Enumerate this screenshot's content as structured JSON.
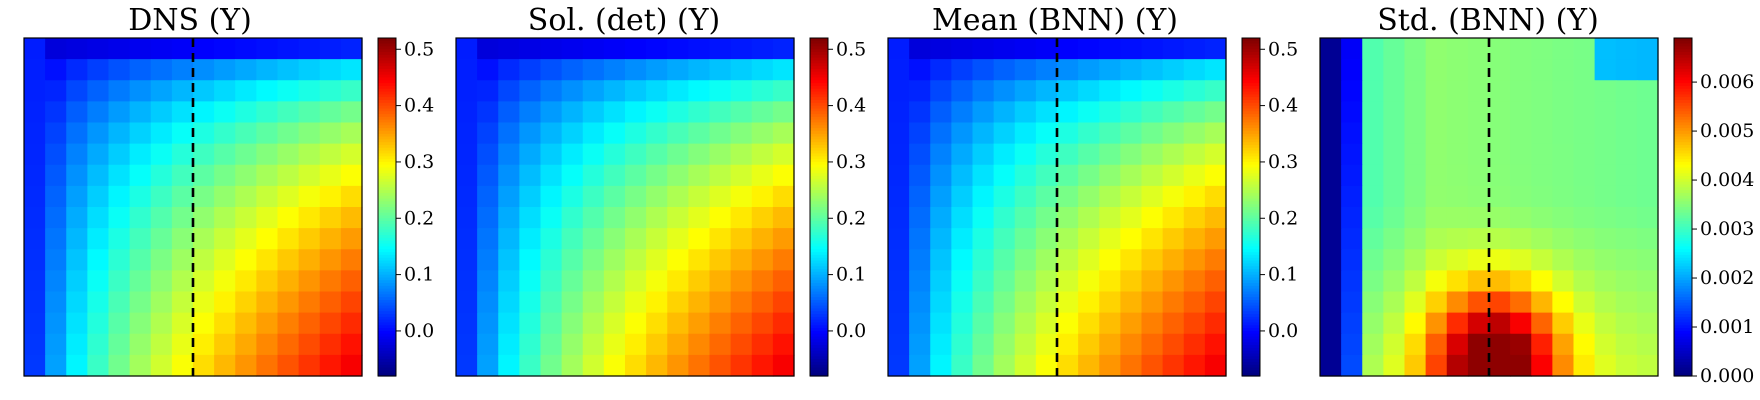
{
  "chart_data": [
    {
      "type": "heatmap",
      "title": "DNS (Y)",
      "colorbar": {
        "vmin": -0.08,
        "vmax": 0.52,
        "ticks": [
          0.0,
          0.1,
          0.2,
          0.3,
          0.4,
          0.5
        ],
        "tick_labels": [
          "0.0",
          "0.1",
          "0.2",
          "0.3",
          "0.4",
          "0.5"
        ]
      },
      "grid": {
        "rows": 16,
        "cols": 16,
        "min": -0.06,
        "max": 0.49
      },
      "dashed_line_column": 7.5,
      "colormap": "jet"
    },
    {
      "type": "heatmap",
      "title": "Sol. (det) (Y)",
      "colorbar": {
        "vmin": -0.08,
        "vmax": 0.52,
        "ticks": [
          0.0,
          0.1,
          0.2,
          0.3,
          0.4,
          0.5
        ],
        "tick_labels": [
          "0.0",
          "0.1",
          "0.2",
          "0.3",
          "0.4",
          "0.5"
        ]
      },
      "grid": {
        "rows": 16,
        "cols": 16,
        "min": -0.06,
        "max": 0.49
      },
      "colormap": "jet"
    },
    {
      "type": "heatmap",
      "title": "Mean (BNN) (Y)",
      "colorbar": {
        "vmin": -0.08,
        "vmax": 0.52,
        "ticks": [
          0.0,
          0.1,
          0.2,
          0.3,
          0.4,
          0.5
        ],
        "tick_labels": [
          "0.0",
          "0.1",
          "0.2",
          "0.3",
          "0.4",
          "0.5"
        ]
      },
      "grid": {
        "rows": 16,
        "cols": 16,
        "min": -0.06,
        "max": 0.49
      },
      "dashed_line_column": 7.5,
      "colormap": "jet"
    },
    {
      "type": "heatmap",
      "title": "Std. (BNN) (Y)",
      "colorbar": {
        "vmin": 0.0,
        "vmax": 0.0069,
        "ticks": [
          0.0,
          0.001,
          0.002,
          0.003,
          0.004,
          0.005,
          0.006
        ],
        "tick_labels": [
          "0.000",
          "0.001",
          "0.002",
          "0.003",
          "0.004",
          "0.005",
          "0.006"
        ]
      },
      "grid": {
        "rows": 16,
        "cols": 16,
        "min": 0.0,
        "max": 0.0068
      },
      "dashed_line_column": 7.5,
      "colormap": "jet"
    }
  ]
}
